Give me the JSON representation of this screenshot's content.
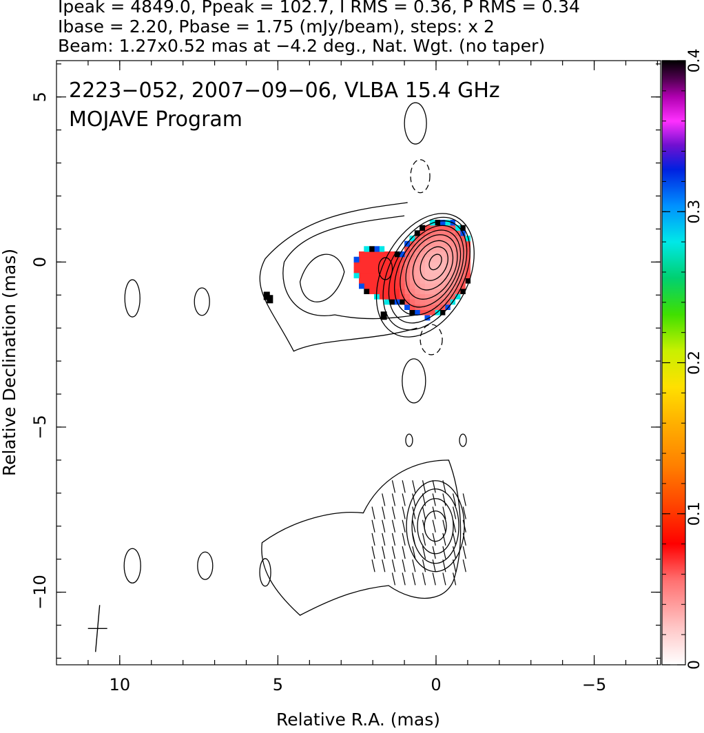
{
  "header_lines": [
    "Ipeak = 4849.0, Ppeak = 102.7, I RMS = 0.36, P RMS = 0.34",
    "Ibase = 2.20, Pbase = 1.75 (mJy/beam), steps: x 2",
    "Beam: 1.27x0.52 mas at −4.2 deg., Nat. Wgt. (no taper)"
  ],
  "annotation_lines": [
    "2223−052, 2007−09−06, VLBA 15.4 GHz",
    "MOJAVE Program"
  ],
  "chart_data": {
    "type": "heatmap",
    "xlabel": "Relative R.A. (mas)",
    "ylabel": "Relative Declination (mas)",
    "xlim": [
      12.0,
      -7.1
    ],
    "ylim": [
      -12.2,
      6.1
    ],
    "x_ticks": [
      10,
      5,
      0,
      -5
    ],
    "x_tick_labels": [
      "10",
      "5",
      "0",
      "−5"
    ],
    "y_ticks": [
      5,
      0,
      -5,
      -10
    ],
    "y_tick_labels": [
      "5",
      "0",
      "−5",
      "−10"
    ],
    "colorbar": {
      "min": 0,
      "max": 0.4,
      "ticks": [
        0,
        0.1,
        0.2,
        0.3,
        0.4
      ],
      "tick_labels": [
        "0",
        "0.1",
        "0.2",
        "0.3",
        "0.4"
      ]
    },
    "fractional_polarization_region": {
      "core_value": 0.03,
      "jet_value": 0.07,
      "edge_values": [
        0.28,
        0.32,
        0.4
      ]
    },
    "beam": {
      "major_mas": 1.27,
      "minor_mas": 0.52,
      "pa_deg": -4.2
    }
  }
}
